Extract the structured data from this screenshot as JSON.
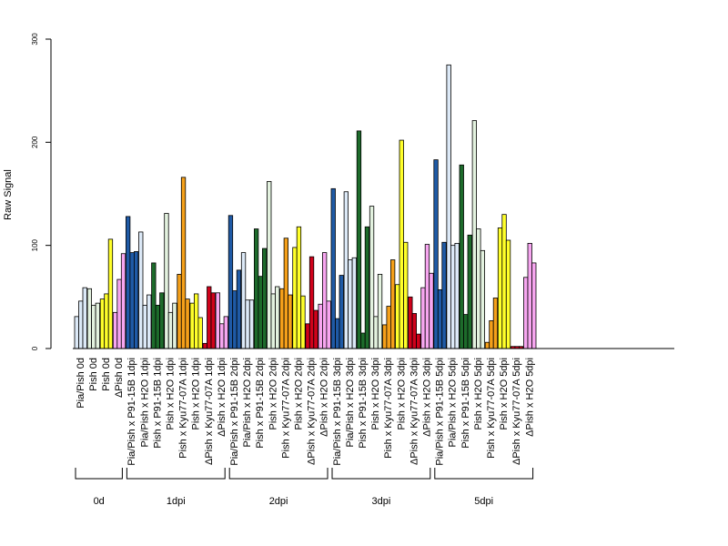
{
  "chart_data": {
    "type": "bar",
    "ylabel": "Raw Signal",
    "ylim": [
      0,
      300
    ],
    "yticks": [
      0,
      100,
      200,
      300
    ],
    "grid": false,
    "legend": "none",
    "colors": {
      "pia_pish": "#dce9f7",
      "pia_pish_p91": "#1f5aa6",
      "pia_pish_h2o": "#dce9f7",
      "pish_p91": "#1d6b2b",
      "pish_h2o": "#e3f2df",
      "pish_kyu": "#f5a01a",
      "pish": "#ffff2a",
      "dpish_kyu": "#d0021b",
      "dpish": "#f7a6f0"
    },
    "categories": [
      {
        "label": "Pia/Pish 0d",
        "color_key": "pia_pish",
        "values": [
          31,
          46,
          59
        ]
      },
      {
        "label": "Pish 0d",
        "color_key": "pish_h2o",
        "values": [
          58,
          42,
          44
        ]
      },
      {
        "label": "Pish 0d",
        "color_key": "pish",
        "values": [
          48,
          53,
          106
        ]
      },
      {
        "label": "ΔPish 0d",
        "color_key": "dpish",
        "values": [
          35,
          67,
          92
        ]
      },
      {
        "label": "Pia/Pish x P91-15B 1dpi",
        "color_key": "pia_pish_p91",
        "values": [
          128,
          93,
          94
        ]
      },
      {
        "label": "Pia/Pish x H2O 1dpi",
        "color_key": "pia_pish_h2o",
        "values": [
          113,
          42,
          52
        ]
      },
      {
        "label": "Pish x P91-15B 1dpi",
        "color_key": "pish_p91",
        "values": [
          83,
          42,
          54
        ]
      },
      {
        "label": "Pish x H2O 1dpi",
        "color_key": "pish_h2o",
        "values": [
          131,
          35,
          44
        ]
      },
      {
        "label": "Pish x Kyu77-07A 1dpi",
        "color_key": "pish_kyu",
        "values": [
          72,
          166,
          48
        ]
      },
      {
        "label": "Pish x H2O 1dpi",
        "color_key": "pish",
        "values": [
          44,
          53,
          30
        ]
      },
      {
        "label": "ΔPish x Kyu77-07A 1dpi",
        "color_key": "dpish_kyu",
        "values": [
          5,
          60,
          54
        ]
      },
      {
        "label": "ΔPish x H2O 1dpi",
        "color_key": "dpish",
        "values": [
          54,
          24,
          31
        ]
      },
      {
        "label": "Pia/Pish x P91-15B 2dpi",
        "color_key": "pia_pish_p91",
        "values": [
          129,
          56,
          76
        ]
      },
      {
        "label": "Pia/Pish x H2O 2dpi",
        "color_key": "pia_pish_h2o",
        "values": [
          93,
          47,
          47
        ]
      },
      {
        "label": "Pish x P91-15B 2dpi",
        "color_key": "pish_p91",
        "values": [
          116,
          70,
          97
        ]
      },
      {
        "label": "Pish x H2O 2dpi",
        "color_key": "pish_h2o",
        "values": [
          162,
          53,
          60
        ]
      },
      {
        "label": "Pish x Kyu77-07A 2dpi",
        "color_key": "pish_kyu",
        "values": [
          58,
          107,
          52
        ]
      },
      {
        "label": "Pish x H2O 2dpi",
        "color_key": "pish",
        "values": [
          98,
          118,
          51
        ]
      },
      {
        "label": "ΔPish x Kyu77-07A 2dpi",
        "color_key": "dpish_kyu",
        "values": [
          24,
          89,
          37
        ]
      },
      {
        "label": "ΔPish x H2O 2dpi",
        "color_key": "dpish",
        "values": [
          43,
          93,
          46
        ]
      },
      {
        "label": "Pia/Pish x P91-15B 3dpi",
        "color_key": "pia_pish_p91",
        "values": [
          155,
          29,
          71
        ]
      },
      {
        "label": "Pia/Pish x H2O 3dpi",
        "color_key": "pia_pish_h2o",
        "values": [
          152,
          86,
          88
        ]
      },
      {
        "label": "Pish x P91-15B 3dpi",
        "color_key": "pish_p91",
        "values": [
          211,
          15,
          118
        ]
      },
      {
        "label": "Pish x H2O 3dpi",
        "color_key": "pish_h2o",
        "values": [
          138,
          31,
          72
        ]
      },
      {
        "label": "Pish x Kyu77-07A 3dpi",
        "color_key": "pish_kyu",
        "values": [
          23,
          41,
          86
        ]
      },
      {
        "label": "Pish x H2O 3dpi",
        "color_key": "pish",
        "values": [
          62,
          202,
          103
        ]
      },
      {
        "label": "ΔPish x Kyu77-07A 3dpi",
        "color_key": "dpish_kyu",
        "values": [
          50,
          34,
          14
        ]
      },
      {
        "label": "ΔPish x H2O 3dpi",
        "color_key": "dpish",
        "values": [
          59,
          101,
          73
        ]
      },
      {
        "label": "Pia/Pish x P91-15B 5dpi",
        "color_key": "pia_pish_p91",
        "values": [
          183,
          57,
          103
        ]
      },
      {
        "label": "Pia/Pish x H2O 5dpi",
        "color_key": "pia_pish_h2o",
        "values": [
          275,
          100,
          102
        ]
      },
      {
        "label": "Pish x P91-15B 5dpi",
        "color_key": "pish_p91",
        "values": [
          178,
          33,
          110
        ]
      },
      {
        "label": "Pish x H2O 5dpi",
        "color_key": "pish_h2o",
        "values": [
          221,
          116,
          95
        ]
      },
      {
        "label": "Pish x Kyu77-07A 5dpi",
        "color_key": "pish_kyu",
        "values": [
          6,
          27,
          49
        ]
      },
      {
        "label": "Pish x H2O 5dpi",
        "color_key": "pish",
        "values": [
          117,
          130,
          105
        ]
      },
      {
        "label": "ΔPish x Kyu77-07A 5dpi",
        "color_key": "dpish_kyu",
        "values": [
          2,
          2,
          2
        ]
      },
      {
        "label": "ΔPish x H2O 5dpi",
        "color_key": "dpish",
        "values": [
          69,
          102,
          83
        ]
      }
    ],
    "groups": [
      {
        "label": "0d",
        "count": 4
      },
      {
        "label": "1dpi",
        "count": 8
      },
      {
        "label": "2dpi",
        "count": 8
      },
      {
        "label": "3dpi",
        "count": 8
      },
      {
        "label": "5dpi",
        "count": 8
      }
    ]
  }
}
